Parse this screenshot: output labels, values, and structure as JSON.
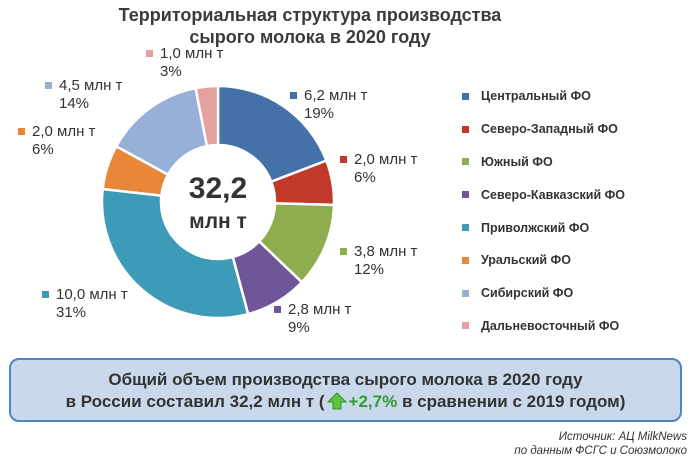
{
  "title": {
    "line1": "Территориальная структура производства",
    "line2": "сырого молока в 2020 году"
  },
  "chart_data": {
    "type": "pie",
    "title": "Территориальная структура производства сырого молока в 2020 году",
    "center_label": {
      "value": "32,2",
      "unit": "млн т"
    },
    "categories": [
      "Центральный ФО",
      "Северо-Западный ФО",
      "Южный ФО",
      "Северо-Кавказский ФО",
      "Приволжский ФО",
      "Уральский ФО",
      "Сибирский ФО",
      "Дальневосточный ФО"
    ],
    "values": [
      6.2,
      2.0,
      3.8,
      2.8,
      10.0,
      2.0,
      4.5,
      1.0
    ],
    "value_labels": [
      "6,2 млн т",
      "2,0 млн т",
      "3,8 млн т",
      "2,8 млн т",
      "10,0 млн т",
      "2,0 млн т",
      "4,5 млн т",
      "1,0 млн т"
    ],
    "percent_labels": [
      "19%",
      "6%",
      "12%",
      "9%",
      "31%",
      "6%",
      "14%",
      "3%"
    ],
    "colors": [
      "#4472a8",
      "#c0392b",
      "#8ead4e",
      "#6e5699",
      "#3d9bb8",
      "#e8873a",
      "#97b0d8",
      "#e3a19f"
    ],
    "legend_position": "right"
  },
  "summary": {
    "line1": "Общий объем производства сырого молока в 2020 году",
    "line2_prefix": "в России составил 32,2 млн т (",
    "change": "+2,7%",
    "line2_suffix": " в сравнении с 2019 годом)",
    "change_color": "#2f9e2f",
    "icon": "up-arrow-icon"
  },
  "source": {
    "line1": "Источник: АЦ MilkNews",
    "line2": "по данным ФСГС и Союзмолоко"
  }
}
